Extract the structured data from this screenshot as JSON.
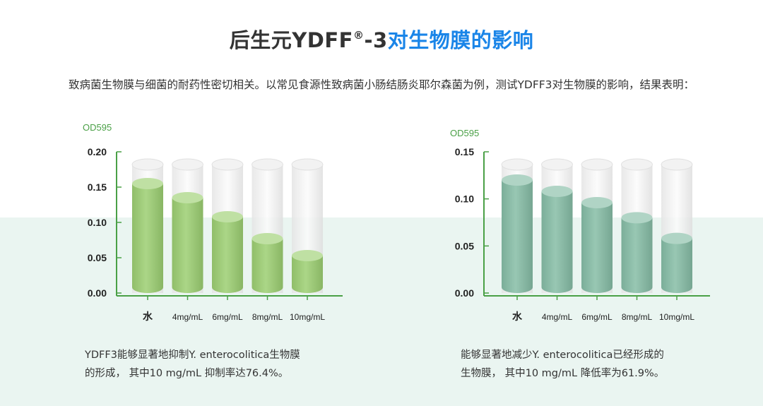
{
  "header": {
    "title_prefix": "后生元YDFF",
    "title_reg": "®",
    "title_dash": "-3",
    "title_highlight": "对生物膜的影响",
    "intro": "致病菌生物膜与细菌的耐药性密切相关。以常见食源性致病菌小肠结肠炎耶尔森菌为例，测试YDFF3对生物膜的影响，结果表明："
  },
  "colors": {
    "axis": "#4aa046",
    "bar_left": "#9ccf72",
    "bar_right": "#86bda6",
    "highlight": "#1a85e8",
    "band": "#eaf5f1"
  },
  "chart_data": [
    {
      "type": "bar",
      "ylabel": "OD595",
      "categories": [
        "水",
        "4mg/mL",
        "6mg/mL",
        "8mg/mL",
        "10mg/mL"
      ],
      "values": [
        0.155,
        0.135,
        0.108,
        0.077,
        0.053
      ],
      "yticks": [
        "0.00",
        "0.05",
        "0.10",
        "0.15",
        "0.20"
      ],
      "ylim": [
        0,
        0.2
      ],
      "grid": false
    },
    {
      "type": "bar",
      "ylabel": "OD595",
      "categories": [
        "水",
        "4mg/mL",
        "6mg/mL",
        "8mg/mL",
        "10mg/mL"
      ],
      "values": [
        0.12,
        0.108,
        0.096,
        0.08,
        0.058
      ],
      "yticks": [
        "0.00",
        "0.05",
        "0.10",
        "0.15"
      ],
      "ylim": [
        0,
        0.15
      ],
      "grid": false
    }
  ],
  "captions": {
    "left_line1": "YDFF3能够显著地抑制Y. enterocolitica生物膜",
    "left_line2": "的形成， 其中10 mg/mL 抑制率达76.4%。",
    "right_line1": "能够显著地减少Y. enterocolitica已经形成的",
    "right_line2": "生物膜， 其中10 mg/mL 降低率为61.9%。"
  }
}
